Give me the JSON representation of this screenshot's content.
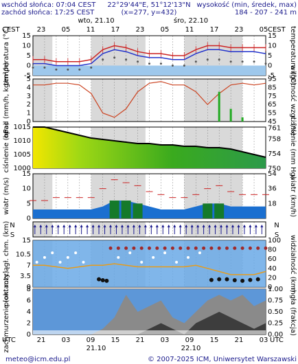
{
  "header": {
    "sunrise": "wschód słońca: 07:04 CEST",
    "sunset": "zachód słońca: 17:25 CEST",
    "coords": "22°29'44\"E, 51°12'13\"N",
    "grid": "(x=277, y=432)",
    "elev_label": "wysokość (min, średek, max)",
    "elev_values": "184 - 207 - 241 m"
  },
  "time_axis": {
    "tz": "CEST",
    "tz_bottom": "UTC",
    "top_hours": [
      "23",
      "05",
      "11",
      "17",
      "23",
      "05",
      "11",
      "17",
      "23",
      "05"
    ],
    "bottom_hours": [
      "21",
      "03",
      "09",
      "15",
      "21",
      "03",
      "09",
      "15",
      "21",
      "03"
    ],
    "day1": "wto, 21.10",
    "day2": "śro, 22.10",
    "day1_bottom": "21.10",
    "day2_bottom": "22.10"
  },
  "footer": {
    "email": "meteo@icm.edu.pl",
    "copyright": "© 2007-2025 ICM, Uniwersytet Warszawski"
  },
  "chart_data": [
    {
      "type": "line",
      "panel": "temperature",
      "ylabel_left": "temperatura (°C)",
      "ylabel_right": "temperatura (°C)",
      "ylim": [
        -5,
        15
      ],
      "yticks": [
        -5,
        0,
        5,
        10,
        15
      ],
      "x_hours": [
        0,
        6,
        12,
        18,
        24,
        30,
        36,
        42,
        48,
        54,
        60,
        66,
        72,
        78,
        84,
        90,
        96,
        102,
        108,
        114,
        120
      ],
      "series": [
        {
          "values": [
            3,
            3,
            2,
            2,
            2,
            3,
            8,
            10,
            9,
            7,
            6,
            6,
            5,
            5,
            8,
            10,
            10,
            9,
            9,
            9,
            9
          ]
        },
        {
          "values": [
            1,
            1,
            0,
            0,
            0,
            1,
            6,
            8,
            7,
            5,
            4,
            4,
            3,
            3,
            6,
            8,
            8,
            7,
            7,
            7,
            6
          ]
        },
        {
          "values": [
            -1,
            -1,
            -2,
            -2,
            -2,
            -1,
            3,
            4,
            3,
            2,
            1,
            1,
            0,
            0,
            2,
            3,
            3,
            2,
            2,
            2,
            1
          ]
        }
      ]
    },
    {
      "type": "line",
      "panel": "precipitation",
      "ylabel_left": "opad (mm/h, kg/m²/h)",
      "ylabel_right": "wilgotność wzgl. (%)",
      "ylim": [
        0,
        5
      ],
      "yticks": [
        0,
        1,
        2,
        3,
        4,
        5
      ],
      "y2lim": [
        45,
        95
      ],
      "y2ticks": [
        45,
        55,
        65,
        75,
        85,
        95
      ],
      "x_hours": [
        0,
        6,
        12,
        18,
        24,
        30,
        36,
        42,
        48,
        54,
        60,
        66,
        72,
        78,
        84,
        90,
        96,
        102,
        108,
        114,
        120
      ],
      "series": [
        {
          "values": [
            88,
            88,
            90,
            90,
            88,
            78,
            55,
            50,
            60,
            80,
            90,
            92,
            88,
            88,
            80,
            65,
            78,
            88,
            90,
            88,
            90
          ]
        },
        {
          "values": [
            0,
            0,
            0,
            0,
            0,
            0,
            0,
            0,
            0,
            0,
            0,
            0,
            0,
            0,
            0,
            0,
            3.5,
            1.5,
            0.5,
            0,
            0
          ]
        }
      ]
    },
    {
      "type": "area",
      "panel": "pressure",
      "ylabel_left": "ciśnienie (hPa)",
      "ylabel_right": "ciśnienie (mm Hg)",
      "ylim": [
        1000,
        1015
      ],
      "yticks": [
        1000,
        1005,
        1010,
        1015
      ],
      "y2ticks": [
        750,
        754,
        758,
        761
      ],
      "x_hours": [
        0,
        6,
        12,
        18,
        24,
        30,
        36,
        42,
        48,
        54,
        60,
        66,
        72,
        78,
        84,
        90,
        96,
        102,
        108,
        114,
        120
      ],
      "series": [
        {
          "values": [
            1016,
            1015,
            1014,
            1013,
            1012,
            1011,
            1010.5,
            1010,
            1009.5,
            1009,
            1009,
            1008.5,
            1008.5,
            1008,
            1008,
            1007.5,
            1007.5,
            1007,
            1006,
            1005,
            1004
          ]
        }
      ]
    },
    {
      "type": "area",
      "panel": "wind",
      "ylabel_left": "wiatr (m/s)",
      "ylabel_right": "wiatr (km/h)",
      "ylim": [
        0,
        15
      ],
      "yticks": [
        0,
        5,
        10,
        15
      ],
      "y2ticks": [
        18,
        36,
        54
      ],
      "x_hours": [
        0,
        6,
        12,
        18,
        24,
        30,
        36,
        42,
        48,
        54,
        60,
        66,
        72,
        78,
        84,
        90,
        96,
        102,
        108,
        114,
        120
      ],
      "series": [
        {
          "values": [
            3,
            3,
            3,
            3,
            3,
            3,
            4,
            6,
            6,
            5,
            4,
            3,
            3,
            3,
            4,
            5,
            5,
            4,
            4,
            4,
            4
          ]
        },
        {
          "values": [
            6,
            6,
            7,
            7,
            7,
            7,
            10,
            13,
            12,
            11,
            9,
            8,
            7,
            7,
            8,
            10,
            11,
            9,
            8,
            8,
            8
          ]
        }
      ]
    },
    {
      "type": "scatter",
      "panel": "cloud_base_visibility",
      "ylabel_left": "pion. rozciągł. chm. (km)",
      "ylabel_right": "widzialność (km)",
      "ylim": [
        0,
        15
      ],
      "yticks": [
        0.0,
        3.5,
        7.0,
        10.5,
        15.0
      ],
      "y2ticks": [
        0,
        20,
        40,
        60,
        80,
        100
      ],
      "x_hours": [
        0,
        6,
        12,
        18,
        24,
        30,
        36,
        42,
        48,
        54,
        60,
        66,
        72,
        78,
        84,
        90,
        96,
        102,
        108,
        114,
        120
      ],
      "series": [
        {
          "values": [
            7,
            7,
            6.5,
            6,
            6.5,
            7,
            7,
            7.5,
            7,
            6.5,
            6.5,
            6.5,
            6.5,
            6.5,
            7,
            6,
            5,
            4,
            4,
            4,
            5
          ]
        }
      ]
    },
    {
      "type": "area",
      "panel": "cloud_cover",
      "ylabel_left": "zachmurzenie (oktanty)",
      "ylabel_right": "mgła (frakcja)",
      "ylim": [
        0,
        8
      ],
      "yticks": [
        0,
        2,
        4,
        6,
        8
      ],
      "y2ticks": [
        0.0,
        0.25,
        0.5,
        0.75,
        1.0
      ],
      "x_hours": [
        0,
        6,
        12,
        18,
        24,
        30,
        36,
        42,
        48,
        54,
        60,
        66,
        72,
        78,
        84,
        90,
        96,
        102,
        108,
        114,
        120
      ],
      "series": [
        {
          "values": [
            0,
            0,
            0,
            0,
            0,
            0,
            1,
            3,
            7,
            4,
            5,
            6,
            3,
            2,
            4,
            6,
            7,
            6,
            7,
            5,
            6
          ]
        },
        {
          "values": [
            0,
            0,
            0,
            0,
            0,
            0,
            0,
            0,
            0,
            0,
            1,
            2,
            1,
            0,
            2,
            3,
            4,
            3,
            2,
            1,
            2
          ]
        }
      ]
    }
  ]
}
